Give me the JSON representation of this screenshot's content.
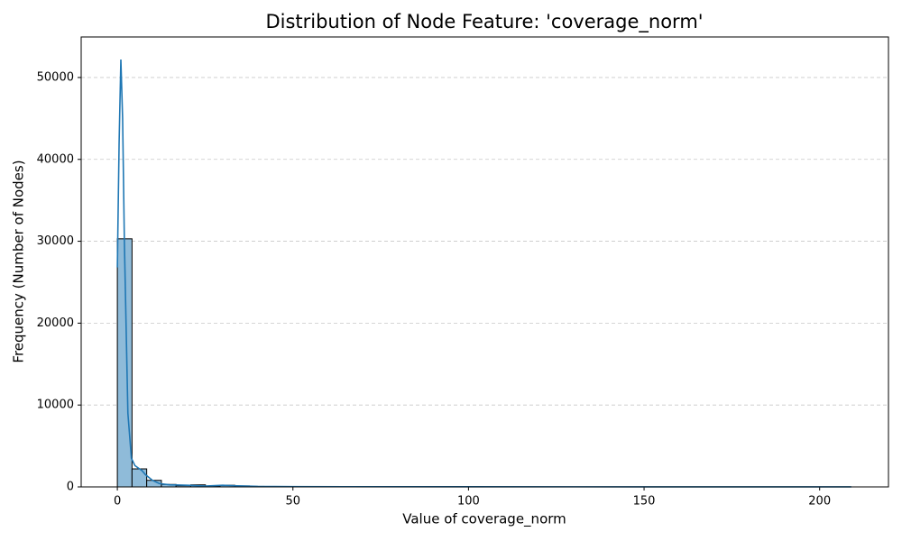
{
  "chart_data": {
    "type": "histogram",
    "title": "Distribution of Node Feature: 'coverage_norm'",
    "x_label": "Value of coverage_norm",
    "y_label": "Frequency (Number of Nodes)",
    "bins": [
      0,
      4.18,
      8.36,
      12.54,
      16.72,
      20.9,
      25.08,
      29.26,
      33.44,
      37.62,
      41.8,
      45.98,
      50.16,
      54.34,
      58.52,
      62.7,
      66.88,
      71.06,
      75.24,
      79.42,
      83.6,
      87.78,
      91.96,
      96.14,
      100.32,
      104.5,
      108.68,
      112.86,
      117.04,
      121.22,
      125.4,
      129.58,
      133.76,
      137.94,
      142.12,
      146.3,
      150.48,
      154.66,
      158.84,
      163.02,
      167.2,
      171.38,
      175.56,
      179.74,
      183.92,
      188.1,
      192.28,
      196.46,
      200.64,
      204.82,
      209
    ],
    "values": [
      30300,
      2200,
      800,
      300,
      150,
      250,
      100,
      200,
      120,
      60,
      40,
      30,
      25,
      20,
      15,
      12,
      10,
      8,
      8,
      6,
      6,
      5,
      5,
      4,
      6,
      5,
      4,
      3,
      3,
      2,
      2,
      2,
      2,
      2,
      1,
      1,
      1,
      1,
      1,
      1,
      1,
      1,
      1,
      1,
      1,
      1,
      1,
      0,
      0,
      1
    ],
    "color": "#8fbbd9",
    "edge_color": "#000000",
    "line": {
      "x": [
        0,
        0.5,
        1,
        1.5,
        2,
        3,
        4,
        5,
        6,
        7,
        8,
        10,
        12,
        15,
        20,
        25,
        30,
        33,
        40,
        50,
        100,
        150,
        209
      ],
      "values": [
        26800,
        42000,
        52200,
        45000,
        30000,
        9000,
        3500,
        2600,
        2300,
        2000,
        1500,
        800,
        400,
        250,
        200,
        100,
        200,
        150,
        60,
        30,
        20,
        10,
        5
      ],
      "color": "#1f77b4"
    },
    "xlim": [
      -10.3,
      219.6
    ],
    "ylim": [
      0,
      54950
    ],
    "xticks": [
      0,
      50,
      100,
      150,
      200
    ],
    "yticks": [
      0,
      10000,
      20000,
      30000,
      40000,
      50000
    ],
    "grid": true
  }
}
